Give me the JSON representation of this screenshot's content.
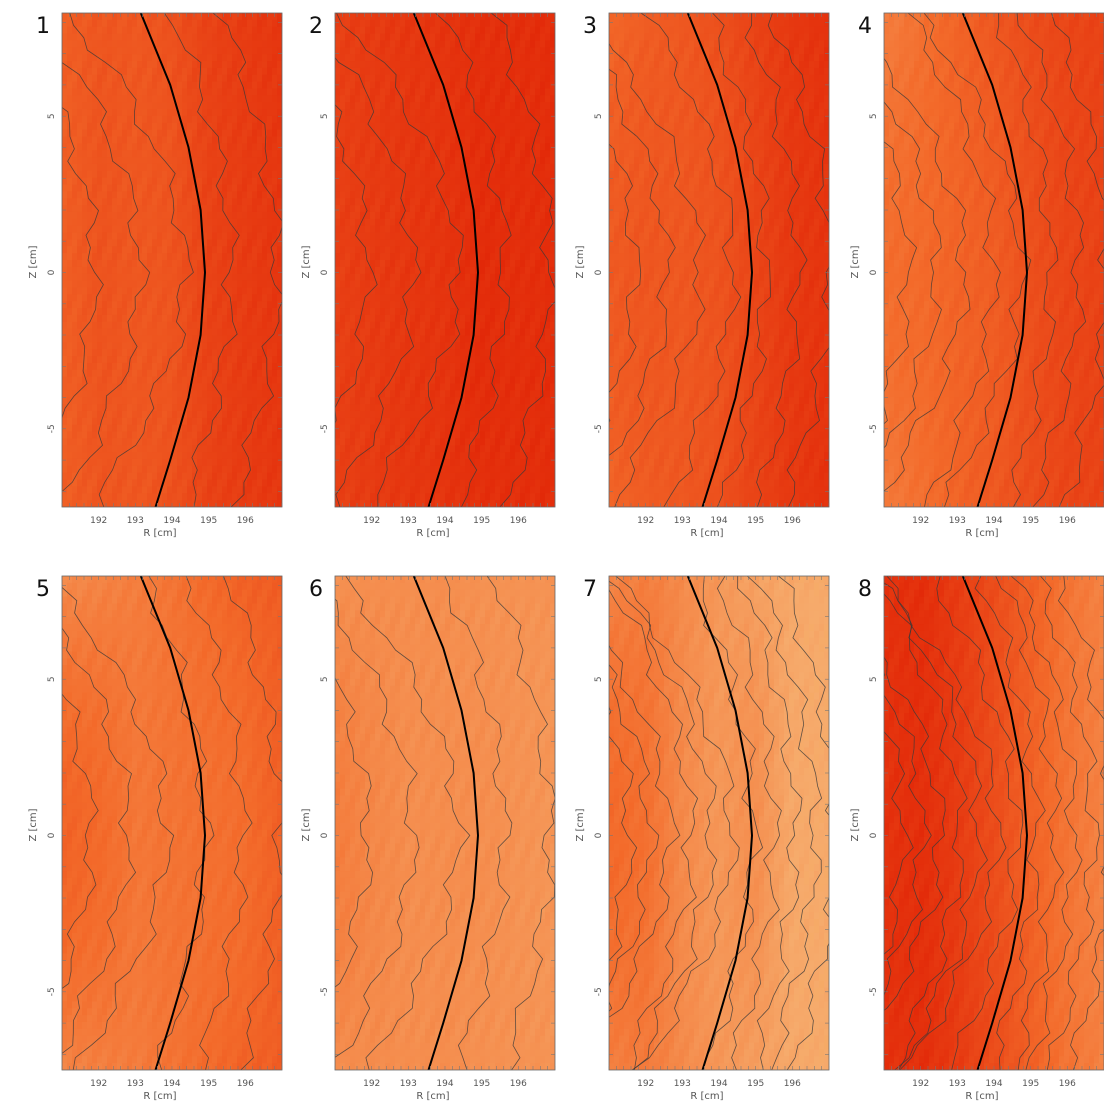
{
  "chart_data": [
    {
      "type": "heatmap",
      "panel_label": "1",
      "xlabel": "R [cm]",
      "ylabel": "Z [cm]",
      "xticks": [
        192,
        193,
        194,
        195,
        196
      ],
      "yticks": [
        5,
        0,
        -5
      ],
      "xlim": [
        191.0,
        197.0
      ],
      "ylim": [
        -7.5,
        8.3
      ],
      "field_levels": [
        0.82,
        0.7,
        0.72,
        0.62,
        0.4,
        0.3,
        0.22
      ],
      "field_bias": [
        0.0,
        -0.05,
        0.0,
        0.05,
        0.0,
        0.0,
        0.0
      ],
      "contour_count": 5
    },
    {
      "type": "heatmap",
      "panel_label": "2",
      "xlabel": "R [cm]",
      "ylabel": "Z [cm]",
      "xticks": [
        192,
        193,
        194,
        195,
        196
      ],
      "yticks": [
        5,
        0,
        -5
      ],
      "xlim": [
        191.0,
        197.0
      ],
      "ylim": [
        -7.5,
        8.3
      ],
      "field_levels": [
        0.35,
        0.28,
        0.22,
        0.18,
        0.12,
        0.1,
        0.08
      ],
      "field_bias": [
        0.0,
        0.0,
        0.0,
        0.0,
        -0.06,
        0.0,
        0.0
      ],
      "contour_count": 5
    },
    {
      "type": "heatmap",
      "panel_label": "3",
      "xlabel": "R [cm]",
      "ylabel": "Z [cm]",
      "xticks": [
        192,
        193,
        194,
        195,
        196
      ],
      "yticks": [
        5,
        0,
        -5
      ],
      "xlim": [
        191.0,
        197.0
      ],
      "ylim": [
        -7.5,
        8.3
      ],
      "field_levels": [
        0.95,
        0.8,
        0.72,
        0.6,
        0.4,
        0.25,
        0.15
      ],
      "field_bias": [
        -0.2,
        -0.1,
        0.0,
        0.05,
        0.05,
        0.0,
        0.05
      ],
      "contour_count": 7
    },
    {
      "type": "heatmap",
      "panel_label": "4",
      "xlabel": "R [cm]",
      "ylabel": "Z [cm]",
      "xticks": [
        192,
        193,
        194,
        195,
        196
      ],
      "yticks": [
        5,
        0,
        -5
      ],
      "xlim": [
        191.0,
        197.0
      ],
      "ylim": [
        -7.5,
        8.3
      ],
      "field_levels": [
        1.3,
        1.1,
        0.9,
        0.7,
        0.55,
        0.45,
        0.4
      ],
      "field_bias": [
        -0.25,
        -0.1,
        0.0,
        0.1,
        0.05,
        0.0,
        0.0
      ],
      "contour_count": 8
    },
    {
      "type": "heatmap",
      "panel_label": "5",
      "xlabel": "R [cm]",
      "ylabel": "Z [cm]",
      "xticks": [
        192,
        193,
        194,
        195,
        196
      ],
      "yticks": [
        5,
        0,
        -5
      ],
      "xlim": [
        191.0,
        197.0
      ],
      "ylim": [
        -7.5,
        8.3
      ],
      "field_levels": [
        1.5,
        1.4,
        1.3,
        1.15,
        1.0,
        0.85,
        0.8
      ],
      "field_bias": [
        -0.6,
        -0.4,
        -0.1,
        0.0,
        0.1,
        0.2,
        0.05
      ],
      "contour_count": 6
    },
    {
      "type": "heatmap",
      "panel_label": "6",
      "xlabel": "R [cm]",
      "ylabel": "Z [cm]",
      "xticks": [
        192,
        193,
        194,
        195,
        196
      ],
      "yticks": [
        5,
        0,
        -5
      ],
      "xlim": [
        191.0,
        197.0
      ],
      "ylim": [
        -7.5,
        8.3
      ],
      "field_levels": [
        1.6,
        1.55,
        1.55,
        1.55,
        1.6,
        1.62,
        1.62
      ],
      "field_bias": [
        -0.3,
        -0.1,
        0.0,
        0.0,
        -0.05,
        0.0,
        0.05
      ],
      "contour_count": 5
    },
    {
      "type": "heatmap",
      "panel_label": "7",
      "xlabel": "R [cm]",
      "ylabel": "Z [cm]",
      "xticks": [
        192,
        193,
        194,
        195,
        196
      ],
      "yticks": [
        5,
        0,
        -5
      ],
      "xlim": [
        191.0,
        197.0
      ],
      "ylim": [
        -7.5,
        8.3
      ],
      "field_levels": [
        1.4,
        1.3,
        1.5,
        1.7,
        1.85,
        1.95,
        2.0
      ],
      "field_bias": [
        -0.4,
        -0.2,
        0.0,
        0.0,
        -0.3,
        0.0,
        0.0
      ],
      "contour_count": 11
    },
    {
      "type": "heatmap",
      "panel_label": "8",
      "xlabel": "R [cm]",
      "ylabel": "Z [cm]",
      "xticks": [
        192,
        193,
        194,
        195,
        196
      ],
      "yticks": [
        5,
        0,
        -5
      ],
      "xlim": [
        191.0,
        197.0
      ],
      "ylim": [
        -7.5,
        8.3
      ],
      "field_levels": [
        0.15,
        0.1,
        0.3,
        0.55,
        0.85,
        1.15,
        1.35
      ],
      "field_bias": [
        0.0,
        0.0,
        0.0,
        0.0,
        0.0,
        0.0,
        0.0
      ],
      "contour_count": 12
    }
  ],
  "colors": {
    "colormap": [
      "#e22808",
      "#f36a2a",
      "#f6ab6c",
      "#f4a21c",
      "#9aa82c",
      "#e8ec3a",
      "#fbfba8"
    ],
    "boundary_line": "#000000",
    "contour_line": "#3a3a3a"
  },
  "boundary_curve": {
    "z": [
      8.3,
      6.0,
      4.0,
      2.0,
      0.0,
      -2.0,
      -4.0,
      -6.0,
      -7.5
    ],
    "r": [
      193.15,
      193.95,
      194.45,
      194.78,
      194.9,
      194.78,
      194.45,
      193.95,
      193.55
    ]
  }
}
